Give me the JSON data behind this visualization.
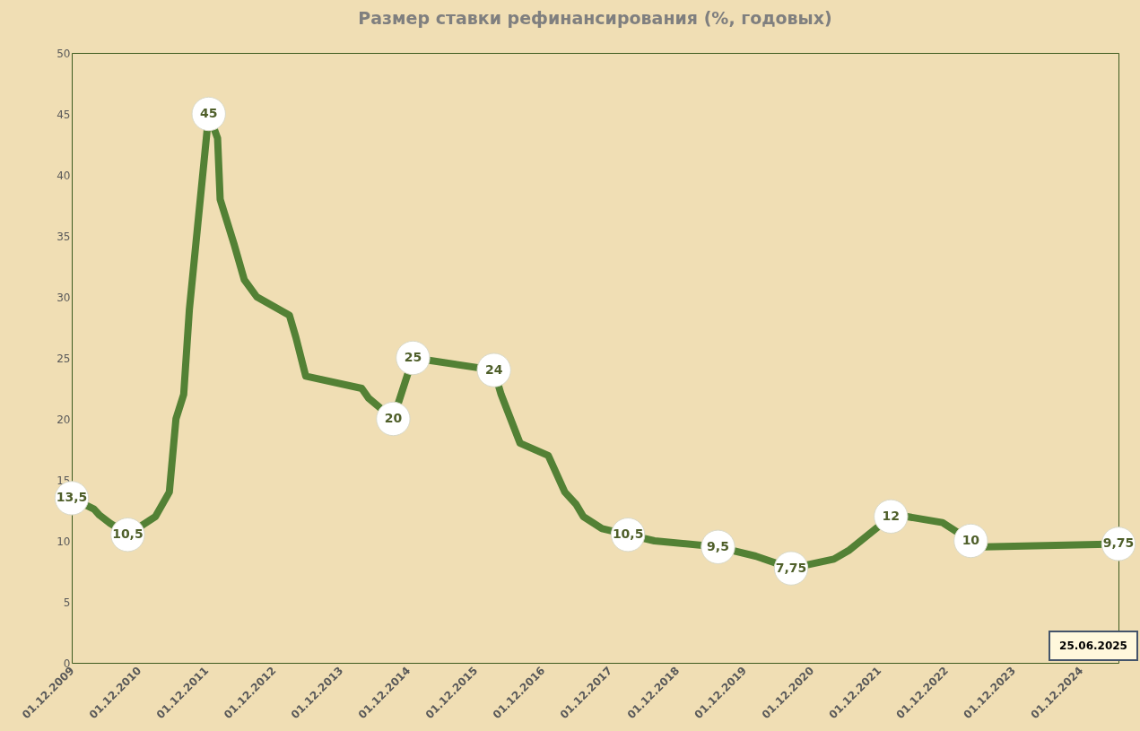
{
  "chart_data": {
    "type": "line",
    "title": "Размер ставки рефинансирования (%, годовых)",
    "x": [
      "2009-12-01",
      "2010-04-01",
      "2010-05-01",
      "2010-07-01",
      "2010-10-01",
      "2011-03-01",
      "2011-05-15",
      "2011-06-20",
      "2011-08-01",
      "2011-09-01",
      "2011-12-15",
      "2012-02-01",
      "2012-02-15",
      "2012-05-01",
      "2012-06-25",
      "2012-09-01",
      "2013-02-25",
      "2013-04-01",
      "2013-05-25",
      "2014-03-25",
      "2014-05-01",
      "2014-09-12",
      "2014-12-28",
      "2016-03-12",
      "2016-04-20",
      "2016-08-01",
      "2017-01-01",
      "2017-04-01",
      "2017-06-01",
      "2017-07-10",
      "2017-10-20",
      "2018-03-10",
      "2018-08-01",
      "2019-07-12",
      "2020-02-01",
      "2020-08-12",
      "2021-04-01",
      "2021-06-25",
      "2022-02-05",
      "2022-04-28",
      "2022-11-12",
      "2023-04-15",
      "2023-06-20",
      "2025-06-25"
    ],
    "series": [
      {
        "color": "#538135",
        "values": [
          13.5,
          12.6,
          12.1,
          11.4,
          10.5,
          12,
          14,
          20,
          22,
          29,
          45,
          43,
          38,
          34.3,
          31.4,
          30,
          28.5,
          26.7,
          23.5,
          22.5,
          21.7,
          20,
          25,
          24,
          22,
          18,
          17,
          14,
          13,
          12,
          11,
          10.5,
          10,
          9.5,
          8.75,
          7.75,
          8.5,
          9.25,
          12,
          12,
          11.5,
          10,
          9.5,
          9.75
        ],
        "value_labels": [
          "13,5",
          null,
          null,
          null,
          "10,5",
          null,
          null,
          null,
          null,
          null,
          "45",
          null,
          null,
          null,
          null,
          null,
          null,
          null,
          null,
          null,
          null,
          "20",
          "25",
          "24",
          null,
          null,
          null,
          null,
          null,
          null,
          null,
          "10,5",
          null,
          "9,5",
          null,
          "7,75",
          null,
          null,
          "12",
          null,
          null,
          "10",
          null,
          "9,75"
        ]
      }
    ],
    "xlim": [
      "2009-12-01",
      "2025-06-25"
    ],
    "xticks": [
      {
        "value": "2009-12-01",
        "label": "01.12.2009"
      },
      {
        "value": "2010-12-01",
        "label": "01.12.2010"
      },
      {
        "value": "2011-12-01",
        "label": "01.12.2011"
      },
      {
        "value": "2012-12-01",
        "label": "01.12.2012"
      },
      {
        "value": "2013-12-01",
        "label": "01.12.2013"
      },
      {
        "value": "2014-12-01",
        "label": "01.12.2014"
      },
      {
        "value": "2015-12-01",
        "label": "01.12.2015"
      },
      {
        "value": "2016-12-01",
        "label": "01.12.2016"
      },
      {
        "value": "2017-12-01",
        "label": "01.12.2017"
      },
      {
        "value": "2018-12-01",
        "label": "01.12.2018"
      },
      {
        "value": "2019-12-01",
        "label": "01.12.2019"
      },
      {
        "value": "2020-12-01",
        "label": "01.12.2020"
      },
      {
        "value": "2021-12-01",
        "label": "01.12.2021"
      },
      {
        "value": "2022-12-01",
        "label": "01.12.2022"
      },
      {
        "value": "2023-12-01",
        "label": "01.12.2023"
      },
      {
        "value": "2024-12-01",
        "label": "01.12.2024"
      }
    ],
    "ylim": [
      0,
      50
    ],
    "yticks": [
      0,
      5,
      10,
      15,
      20,
      25,
      30,
      35,
      40,
      45,
      50
    ],
    "annotations": [
      "25.06.2025"
    ],
    "grid": false,
    "marker": "none",
    "line_style": "solid"
  }
}
